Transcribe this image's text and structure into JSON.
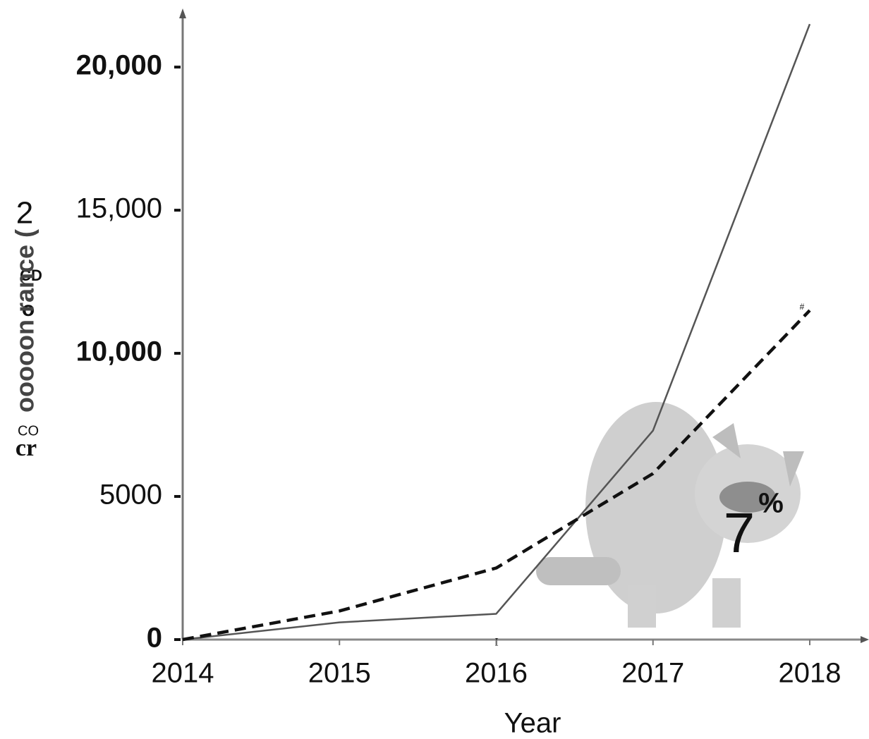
{
  "chart_data": {
    "type": "line",
    "x_label": "Year",
    "y_label_pieces": [
      "2",
      "CD",
      "o",
      "ooooon rance (",
      "CO",
      "cr"
    ],
    "annotations": [
      "7",
      "%",
      "#",
      "I"
    ],
    "x": [
      2014,
      2015,
      2016,
      2017,
      2018
    ],
    "xlim": [
      2014,
      2018
    ],
    "xticks": [
      2014,
      2015,
      2016,
      2017,
      2018
    ],
    "ylim": [
      0,
      21900
    ],
    "yticks": [
      0,
      {
        "value": 5000,
        "label": "5000"
      },
      {
        "value": 10000,
        "label": "10,000"
      },
      {
        "value": 15000,
        "label": "15,000"
      },
      {
        "value": 20000,
        "label": "20,000"
      }
    ],
    "series": [
      {
        "color": "#555555",
        "dashed": false,
        "values": [
          0,
          600,
          900,
          7300,
          21500
        ]
      },
      {
        "color": "#111111",
        "dashed": true,
        "values": [
          0,
          1000,
          2500,
          5800,
          11500
        ]
      }
    ]
  }
}
